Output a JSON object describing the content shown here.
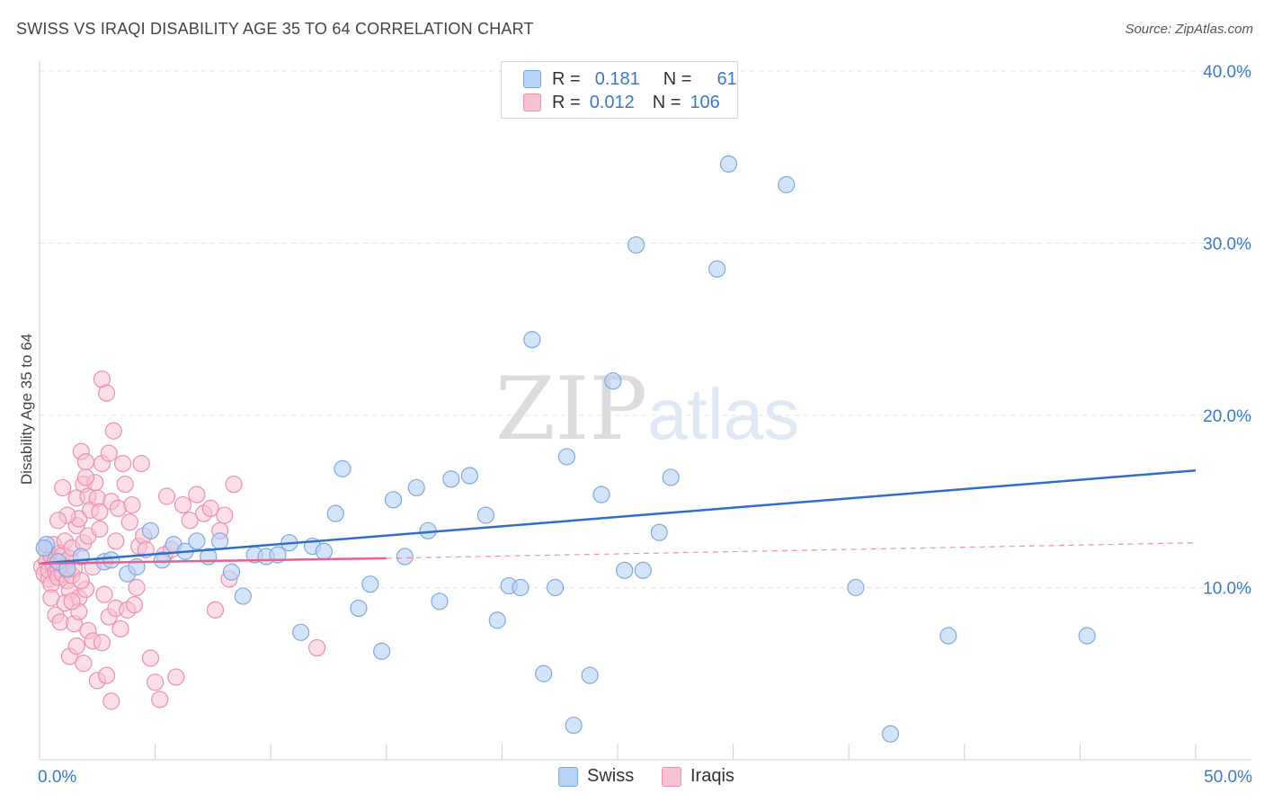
{
  "chart_data": {
    "type": "scatter",
    "title": "SWISS VS IRAQI DISABILITY AGE 35 TO 64 CORRELATION CHART",
    "source": "Source: ZipAtlas.com",
    "ylabel": "Disability Age 35 to 64",
    "xlabel": "",
    "xlim": [
      0,
      50
    ],
    "ylim": [
      0,
      40
    ],
    "x_tick_labels": [
      "0.0%",
      "50.0%"
    ],
    "y_ticks": [
      10,
      20,
      30,
      40
    ],
    "y_tick_labels": [
      "10.0%",
      "20.0%",
      "30.0%",
      "40.0%"
    ],
    "watermark": "ZIPatlas",
    "legend": {
      "swiss": {
        "label": "Swiss",
        "r_label": "R =",
        "r": "0.181",
        "n_label": "N =",
        "n": "61"
      },
      "iraqis": {
        "label": "Iraqis",
        "r_label": "R =",
        "r": "0.012",
        "n_label": "N =",
        "n": "106"
      }
    },
    "colors": {
      "swiss_fill": "#b7d2f4",
      "swiss_stroke": "#7fa9de",
      "swiss_line": "#2f6fc6",
      "iraqis_fill": "#f7c2d4",
      "iraqis_stroke": "#ec8fae",
      "iraqis_line": "#e8608f",
      "tick_label": "#3b78c9",
      "grid": "#e4e4e4"
    },
    "series": [
      {
        "name": "Swiss",
        "trend": {
          "x0": 0,
          "y0": 11.4,
          "x1": 50,
          "y1": 16.8
        },
        "points": [
          [
            0.3,
            12.5
          ],
          [
            0.8,
            11.5
          ],
          [
            1.2,
            11.1
          ],
          [
            2.8,
            11.5
          ],
          [
            3.1,
            11.6
          ],
          [
            3.8,
            10.8
          ],
          [
            4.2,
            11.2
          ],
          [
            4.8,
            13.3
          ],
          [
            5.3,
            11.6
          ],
          [
            5.8,
            12.5
          ],
          [
            6.3,
            12.1
          ],
          [
            6.8,
            12.7
          ],
          [
            7.3,
            11.8
          ],
          [
            7.8,
            12.7
          ],
          [
            8.3,
            10.9
          ],
          [
            8.8,
            9.5
          ],
          [
            9.3,
            11.9
          ],
          [
            9.8,
            11.8
          ],
          [
            10.3,
            11.9
          ],
          [
            10.8,
            12.6
          ],
          [
            11.3,
            7.4
          ],
          [
            11.8,
            12.4
          ],
          [
            12.3,
            12.1
          ],
          [
            12.8,
            14.3
          ],
          [
            13.1,
            16.9
          ],
          [
            13.8,
            8.8
          ],
          [
            14.3,
            10.2
          ],
          [
            14.8,
            6.3
          ],
          [
            15.3,
            15.1
          ],
          [
            15.8,
            11.8
          ],
          [
            16.3,
            15.8
          ],
          [
            16.8,
            13.3
          ],
          [
            17.3,
            9.2
          ],
          [
            17.8,
            16.3
          ],
          [
            18.6,
            16.5
          ],
          [
            19.3,
            14.2
          ],
          [
            19.8,
            8.1
          ],
          [
            20.3,
            10.1
          ],
          [
            20.8,
            10.0
          ],
          [
            21.3,
            24.4
          ],
          [
            21.8,
            5.0
          ],
          [
            22.3,
            10.0
          ],
          [
            22.8,
            17.6
          ],
          [
            23.1,
            2.0
          ],
          [
            23.8,
            4.9
          ],
          [
            24.3,
            15.4
          ],
          [
            24.8,
            22.0
          ],
          [
            25.3,
            11.0
          ],
          [
            25.8,
            29.9
          ],
          [
            26.1,
            11.0
          ],
          [
            26.8,
            13.2
          ],
          [
            27.3,
            16.4
          ],
          [
            29.3,
            28.5
          ],
          [
            29.8,
            34.6
          ],
          [
            32.3,
            33.4
          ],
          [
            35.3,
            10.0
          ],
          [
            36.8,
            1.5
          ],
          [
            39.3,
            7.2
          ],
          [
            45.3,
            7.2
          ],
          [
            0.2,
            12.3
          ],
          [
            1.8,
            11.8
          ]
        ]
      },
      {
        "name": "Iraqis",
        "trend_solid": {
          "x0": 0,
          "y0": 11.4,
          "x1": 15,
          "y1": 11.7
        },
        "trend_dashed": {
          "x0": 15,
          "y0": 11.7,
          "x1": 50,
          "y1": 12.6
        },
        "points": [
          [
            0.1,
            11.2
          ],
          [
            0.2,
            10.8
          ],
          [
            0.3,
            11.5
          ],
          [
            0.3,
            12.2
          ],
          [
            0.4,
            10.5
          ],
          [
            0.4,
            11.0
          ],
          [
            0.5,
            11.8
          ],
          [
            0.5,
            10.2
          ],
          [
            0.6,
            11.3
          ],
          [
            0.6,
            12.5
          ],
          [
            0.7,
            10.9
          ],
          [
            0.7,
            11.6
          ],
          [
            0.8,
            11.1
          ],
          [
            0.8,
            10.6
          ],
          [
            0.9,
            12.0
          ],
          [
            0.9,
            11.4
          ],
          [
            1.0,
            10.8
          ],
          [
            1.0,
            11.9
          ],
          [
            1.1,
            11.2
          ],
          [
            1.1,
            12.7
          ],
          [
            1.2,
            10.4
          ],
          [
            1.2,
            11.0
          ],
          [
            1.3,
            9.8
          ],
          [
            1.3,
            11.7
          ],
          [
            1.4,
            12.3
          ],
          [
            1.4,
            10.7
          ],
          [
            1.5,
            11.1
          ],
          [
            1.6,
            13.6
          ],
          [
            1.6,
            15.2
          ],
          [
            1.7,
            14.0
          ],
          [
            1.7,
            9.4
          ],
          [
            1.8,
            17.9
          ],
          [
            1.9,
            16.0
          ],
          [
            1.9,
            12.6
          ],
          [
            2.0,
            17.3
          ],
          [
            2.0,
            9.9
          ],
          [
            2.1,
            15.3
          ],
          [
            2.1,
            13.0
          ],
          [
            2.2,
            14.5
          ],
          [
            2.3,
            11.2
          ],
          [
            2.4,
            16.1
          ],
          [
            2.5,
            15.2
          ],
          [
            2.6,
            13.4
          ],
          [
            2.6,
            14.4
          ],
          [
            2.7,
            22.1
          ],
          [
            2.7,
            17.2
          ],
          [
            2.8,
            9.6
          ],
          [
            2.9,
            21.3
          ],
          [
            3.0,
            17.8
          ],
          [
            3.0,
            8.3
          ],
          [
            3.1,
            15.0
          ],
          [
            3.2,
            19.1
          ],
          [
            3.3,
            12.7
          ],
          [
            3.3,
            8.8
          ],
          [
            3.4,
            14.6
          ],
          [
            3.5,
            7.6
          ],
          [
            3.6,
            17.2
          ],
          [
            3.7,
            16.0
          ],
          [
            3.8,
            8.7
          ],
          [
            3.9,
            13.8
          ],
          [
            4.0,
            14.8
          ],
          [
            4.1,
            9.0
          ],
          [
            4.2,
            10.0
          ],
          [
            4.3,
            12.4
          ],
          [
            4.4,
            17.2
          ],
          [
            4.5,
            13.0
          ],
          [
            4.6,
            12.2
          ],
          [
            4.8,
            5.9
          ],
          [
            5.0,
            4.5
          ],
          [
            5.2,
            3.5
          ],
          [
            5.4,
            11.9
          ],
          [
            5.5,
            15.3
          ],
          [
            5.7,
            12.2
          ],
          [
            5.9,
            4.8
          ],
          [
            6.2,
            14.8
          ],
          [
            6.5,
            13.9
          ],
          [
            6.8,
            15.4
          ],
          [
            7.1,
            14.3
          ],
          [
            7.4,
            14.6
          ],
          [
            7.6,
            8.7
          ],
          [
            7.8,
            13.3
          ],
          [
            8.0,
            14.2
          ],
          [
            8.2,
            10.5
          ],
          [
            8.4,
            16.0
          ],
          [
            0.5,
            9.4
          ],
          [
            0.7,
            8.4
          ],
          [
            0.9,
            8.0
          ],
          [
            1.1,
            9.1
          ],
          [
            1.3,
            6.0
          ],
          [
            1.5,
            7.9
          ],
          [
            1.7,
            8.6
          ],
          [
            1.9,
            5.6
          ],
          [
            2.1,
            7.5
          ],
          [
            2.3,
            6.9
          ],
          [
            2.5,
            4.6
          ],
          [
            2.7,
            6.8
          ],
          [
            2.9,
            4.9
          ],
          [
            3.1,
            3.4
          ],
          [
            1.0,
            15.8
          ],
          [
            1.2,
            14.2
          ],
          [
            0.8,
            13.9
          ],
          [
            1.4,
            9.2
          ],
          [
            1.6,
            6.6
          ],
          [
            1.8,
            10.4
          ],
          [
            12.0,
            6.5
          ],
          [
            2.0,
            16.4
          ]
        ]
      }
    ]
  }
}
